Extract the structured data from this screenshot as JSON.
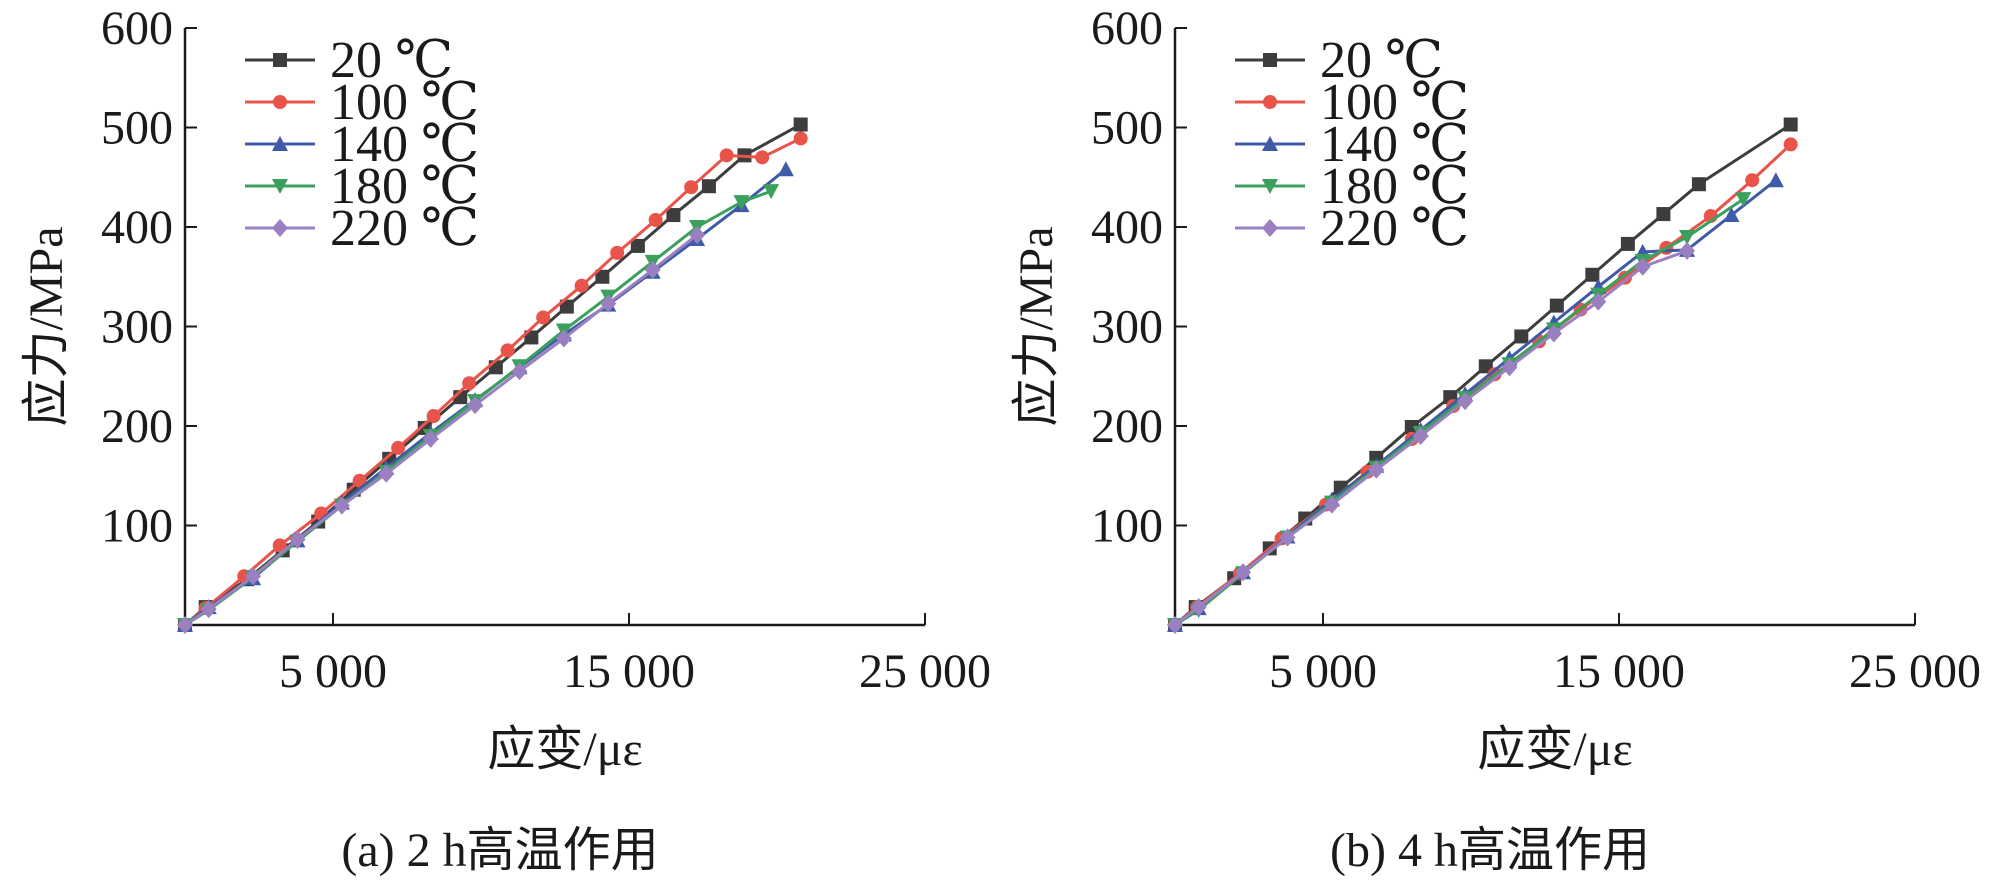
{
  "chart_data": [
    {
      "type": "line",
      "caption": "(a) 2 h高温作用",
      "xlabel": "应变/με",
      "ylabel": "应力/MPa",
      "xlim": [
        0,
        25000
      ],
      "ylim": [
        0,
        600
      ],
      "xticks": [
        5000,
        15000,
        25000
      ],
      "xtick_labels": [
        "5 000",
        "15 000",
        "25 000"
      ],
      "yticks": [
        100,
        200,
        300,
        400,
        500,
        600
      ],
      "ytick_labels": [
        "100",
        "200",
        "300",
        "400",
        "500",
        "600"
      ],
      "grid": false,
      "legend_position": "top-left",
      "series": [
        {
          "name": "20 ℃",
          "color": "#3d3d3d",
          "marker": "square",
          "x": [
            0,
            700,
            2100,
            3300,
            4500,
            5700,
            6900,
            8100,
            9300,
            10500,
            11700,
            12900,
            14100,
            15300,
            16500,
            17700,
            18900,
            20800
          ],
          "y": [
            0,
            18,
            46,
            75,
            104,
            136,
            167,
            198,
            229,
            259,
            289,
            320,
            350,
            381,
            412,
            441,
            472,
            503
          ]
        },
        {
          "name": "100 ℃",
          "color": "#e8534a",
          "marker": "circle",
          "x": [
            0,
            700,
            2000,
            3200,
            4600,
            5900,
            7200,
            8400,
            9600,
            10900,
            12100,
            13400,
            14600,
            15900,
            17100,
            18300,
            19500,
            20800
          ],
          "y": [
            0,
            17,
            49,
            80,
            112,
            145,
            178,
            210,
            243,
            276,
            309,
            341,
            374,
            407,
            440,
            472,
            470,
            489
          ]
        },
        {
          "name": "140 ℃",
          "color": "#3f5aa8",
          "marker": "triangle-up",
          "x": [
            0,
            800,
            2300,
            3800,
            5300,
            6800,
            8300,
            9800,
            11300,
            12800,
            14300,
            15800,
            17300,
            18800,
            20300
          ],
          "y": [
            0,
            18,
            47,
            85,
            123,
            158,
            193,
            226,
            259,
            292,
            322,
            355,
            388,
            422,
            458
          ]
        },
        {
          "name": "180 ℃",
          "color": "#3aa05c",
          "marker": "triangle-down",
          "x": [
            0,
            800,
            2300,
            3800,
            5300,
            6800,
            8300,
            9800,
            11300,
            12800,
            14300,
            15800,
            17300,
            18800,
            19800
          ],
          "y": [
            0,
            15,
            48,
            84,
            120,
            154,
            190,
            225,
            260,
            296,
            330,
            365,
            400,
            425,
            436
          ]
        },
        {
          "name": "220 ℃",
          "color": "#9a80c0",
          "marker": "diamond",
          "x": [
            0,
            800,
            2300,
            3800,
            5300,
            6800,
            8300,
            9800,
            11300,
            12800,
            14300,
            15800,
            17300
          ],
          "y": [
            0,
            16,
            49,
            86,
            120,
            152,
            187,
            221,
            255,
            288,
            323,
            357,
            392
          ]
        }
      ]
    },
    {
      "type": "line",
      "caption": "(b) 4 h高温作用",
      "xlabel": "应变/με",
      "ylabel": "应力/MPa",
      "xlim": [
        0,
        25000
      ],
      "ylim": [
        0,
        600
      ],
      "xticks": [
        5000,
        15000,
        25000
      ],
      "xtick_labels": [
        "5 000",
        "15 000",
        "25 000"
      ],
      "yticks": [
        100,
        200,
        300,
        400,
        500,
        600
      ],
      "ytick_labels": [
        "100",
        "200",
        "300",
        "400",
        "500",
        "600"
      ],
      "grid": false,
      "legend_position": "top-left",
      "series": [
        {
          "name": "20 ℃",
          "color": "#3d3d3d",
          "marker": "square",
          "x": [
            0,
            700,
            2000,
            3200,
            4400,
            5600,
            6800,
            8000,
            9300,
            10500,
            11700,
            12900,
            14100,
            15300,
            16500,
            17700,
            20800
          ],
          "y": [
            0,
            18,
            47,
            77,
            107,
            138,
            168,
            199,
            229,
            260,
            290,
            321,
            352,
            383,
            413,
            443,
            503
          ]
        },
        {
          "name": "100 ℃",
          "color": "#e8534a",
          "marker": "circle",
          "x": [
            0,
            750,
            2200,
            3600,
            5100,
            6500,
            8000,
            9400,
            10800,
            12300,
            13700,
            15200,
            16600,
            18100,
            19500,
            20800
          ],
          "y": [
            0,
            18,
            52,
            87,
            121,
            154,
            187,
            220,
            252,
            285,
            317,
            349,
            379,
            411,
            447,
            483
          ]
        },
        {
          "name": "140 ℃",
          "color": "#3f5aa8",
          "marker": "triangle-up",
          "x": [
            0,
            800,
            2300,
            3800,
            5300,
            6800,
            8300,
            9800,
            11300,
            12800,
            14300,
            15800,
            17300,
            18800,
            20300
          ],
          "y": [
            0,
            17,
            53,
            89,
            126,
            160,
            196,
            232,
            268,
            304,
            340,
            375,
            377,
            412,
            447
          ]
        },
        {
          "name": "180 ℃",
          "color": "#3aa05c",
          "marker": "triangle-down",
          "x": [
            0,
            800,
            2300,
            3800,
            5300,
            6800,
            8300,
            9800,
            11300,
            12800,
            14300,
            15800,
            17300,
            19200
          ],
          "y": [
            0,
            15,
            52,
            88,
            123,
            158,
            193,
            228,
            262,
            297,
            332,
            366,
            390,
            428
          ]
        },
        {
          "name": "220 ℃",
          "color": "#9a80c0",
          "marker": "diamond",
          "x": [
            0,
            800,
            2300,
            3800,
            5300,
            6800,
            8300,
            9800,
            11300,
            12800,
            14300,
            15800,
            17300
          ],
          "y": [
            0,
            18,
            53,
            88,
            121,
            156,
            190,
            225,
            259,
            293,
            325,
            360,
            376
          ]
        }
      ]
    }
  ]
}
